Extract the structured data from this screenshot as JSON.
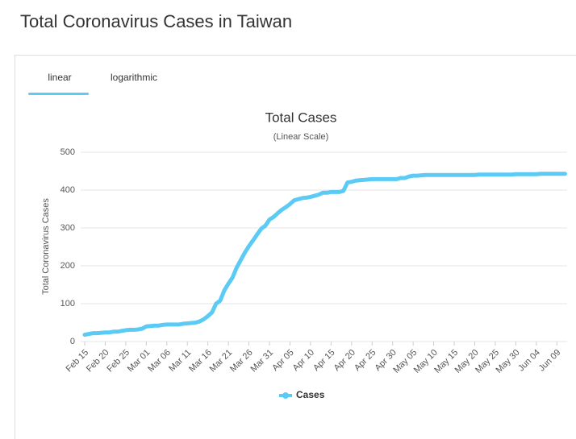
{
  "header": {
    "title": "Total Coronavirus Cases in Taiwan"
  },
  "tabs": [
    "linear",
    "logarithmic"
  ],
  "chart_data": {
    "type": "line",
    "title": "Total Cases",
    "subtitle": "(Linear Scale)",
    "y_label": "Total Coronavirus Cases",
    "categories": [
      "Feb 15",
      null,
      null,
      null,
      null,
      "Feb 20",
      null,
      null,
      null,
      null,
      "Feb 25",
      null,
      null,
      null,
      null,
      "Mar 01",
      null,
      null,
      null,
      null,
      "Mar 06",
      null,
      null,
      null,
      null,
      "Mar 11",
      null,
      null,
      null,
      null,
      "Mar 16",
      null,
      null,
      null,
      null,
      "Mar 21",
      null,
      null,
      null,
      null,
      "Mar 26",
      null,
      null,
      null,
      null,
      "Mar 31",
      null,
      null,
      null,
      null,
      "Apr 05",
      null,
      null,
      null,
      null,
      "Apr 10",
      null,
      null,
      null,
      null,
      "Apr 15",
      null,
      null,
      null,
      null,
      "Apr 20",
      null,
      null,
      null,
      null,
      "Apr 25",
      null,
      null,
      null,
      null,
      "Apr 30",
      null,
      null,
      null,
      null,
      "May 05",
      null,
      null,
      null,
      null,
      "May 10",
      null,
      null,
      null,
      null,
      "May 15",
      null,
      null,
      null,
      null,
      "May 20",
      null,
      null,
      null,
      null,
      "May 25",
      null,
      null,
      null,
      null,
      "May 30",
      null,
      null,
      null,
      null,
      "Jun 04",
      null,
      null,
      null,
      null,
      "Jun 09",
      null,
      null
    ],
    "series": [
      {
        "name": "Cases",
        "color": "#5bcbf5",
        "values": [
          18,
          20,
          22,
          22,
          23,
          24,
          24,
          26,
          26,
          28,
          30,
          31,
          31,
          32,
          34,
          40,
          41,
          42,
          42,
          44,
          45,
          45,
          45,
          45,
          47,
          48,
          49,
          50,
          53,
          59,
          67,
          77,
          100,
          108,
          135,
          153,
          169,
          195,
          215,
          235,
          252,
          267,
          283,
          298,
          306,
          322,
          329,
          339,
          348,
          355,
          363,
          373,
          376,
          379,
          380,
          382,
          385,
          388,
          393,
          393,
          395,
          395,
          395,
          398,
          420,
          422,
          425,
          426,
          427,
          428,
          429,
          429,
          429,
          429,
          429,
          429,
          429,
          432,
          432,
          436,
          438,
          438,
          439,
          440,
          440,
          440,
          440,
          440,
          440,
          440,
          440,
          440,
          440,
          440,
          440,
          440,
          441,
          441,
          441,
          441,
          441,
          441,
          441,
          441,
          441,
          442,
          442,
          442,
          442,
          442,
          442,
          443,
          443,
          443,
          443,
          443,
          443,
          443
        ]
      }
    ],
    "ylim": [
      0,
      500
    ],
    "yticks": [
      0,
      100,
      200,
      300,
      400,
      500
    ],
    "grid": true,
    "legend": "bottom"
  }
}
